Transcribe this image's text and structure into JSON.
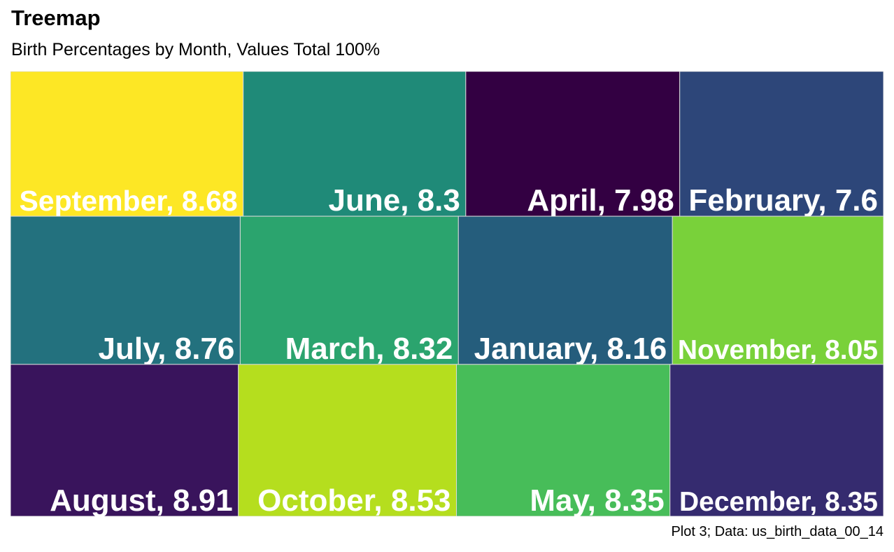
{
  "title": "Treemap",
  "subtitle": "Birth Percentages by Month, Values Total 100%",
  "caption": "Plot 3; Data: us_birth_data_00_14",
  "chart_data": {
    "type": "treemap",
    "title": "Treemap",
    "subtitle": "Birth Percentages by Month, Values Total 100%",
    "caption": "Plot 3; Data: us_birth_data_00_14",
    "label_color": "#ffffff",
    "border_color": "#d9d9d9",
    "rows": [
      {
        "items": [
          {
            "month": "September",
            "value": 8.68,
            "color": "#FDE725"
          },
          {
            "month": "June",
            "value": 8.3,
            "color": "#1F8A78"
          },
          {
            "month": "April",
            "value": 7.98,
            "color": "#330042"
          },
          {
            "month": "February",
            "value": 7.6,
            "color": "#2D4679"
          }
        ]
      },
      {
        "items": [
          {
            "month": "July",
            "value": 8.76,
            "color": "#23717E"
          },
          {
            "month": "March",
            "value": 8.32,
            "color": "#2BA46E"
          },
          {
            "month": "January",
            "value": 8.16,
            "color": "#255D7C"
          },
          {
            "month": "November",
            "value": 8.05,
            "color": "#79D13A"
          }
        ]
      },
      {
        "items": [
          {
            "month": "August",
            "value": 8.91,
            "color": "#39145C"
          },
          {
            "month": "October",
            "value": 8.53,
            "color": "#B5DE1E"
          },
          {
            "month": "May",
            "value": 8.35,
            "color": "#47BD59"
          },
          {
            "month": "December",
            "value": 8.35,
            "color": "#352B6F"
          }
        ]
      }
    ]
  }
}
